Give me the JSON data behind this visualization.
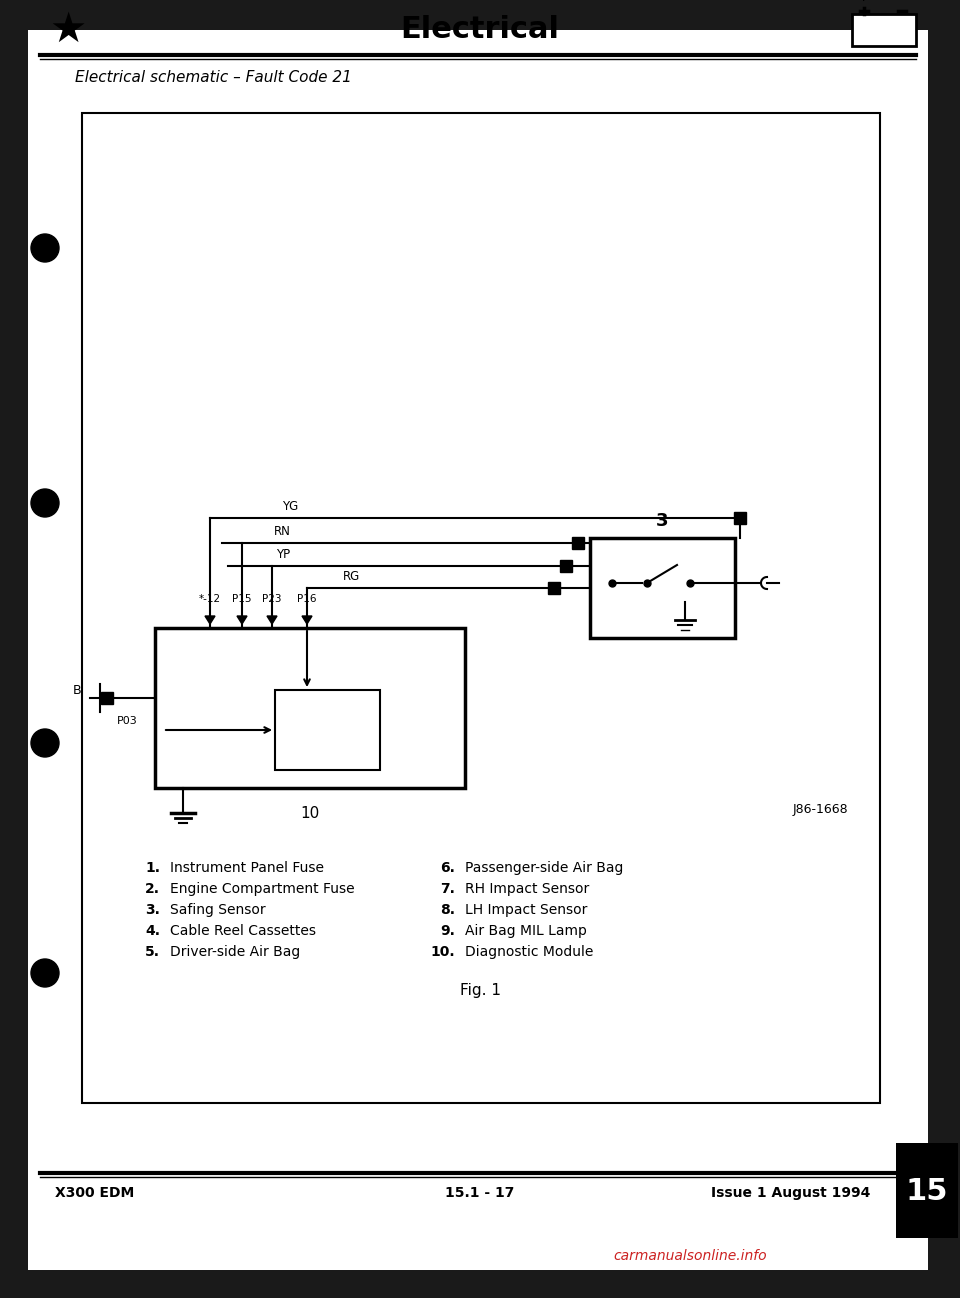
{
  "title": "Electrical",
  "subtitle": "Electrical schematic – Fault Code 21",
  "bg_color": "#ffffff",
  "page_bg": "#1a1a1a",
  "footer_left": "X300 EDM",
  "footer_center": "15.1 - 17",
  "footer_right": "Issue 1 August 1994",
  "page_number": "15",
  "diagram_ref": "J86-1668",
  "fig_label": "Fig. 1",
  "legend": [
    [
      "1.",
      "Instrument Panel Fuse",
      "6.",
      "Passenger-side Air Bag"
    ],
    [
      "2.",
      "Engine Compartment Fuse",
      "7.",
      "RH Impact Sensor"
    ],
    [
      "3.",
      "Safing Sensor",
      "8.",
      "LH Impact Sensor"
    ],
    [
      "4.",
      "Cable Reel Cassettes",
      "9.",
      "Air Bag MIL Lamp"
    ],
    [
      "5.",
      "Driver-side Air Bag",
      "10.",
      "Diagnostic Module"
    ]
  ],
  "wire_labels": [
    "YG",
    "RN",
    "YP",
    "RG"
  ],
  "connector_labels": [
    "*-12",
    "P15",
    "P23",
    "P16"
  ],
  "ground_label": "B",
  "ground_connector": "P03",
  "box10_label": "10",
  "box3_label": "3"
}
